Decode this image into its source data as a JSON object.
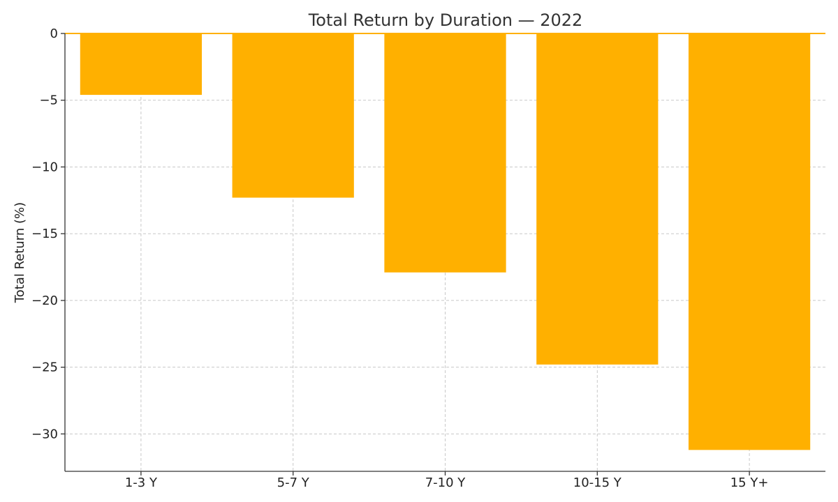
{
  "chart_data": {
    "type": "bar",
    "title": "Total Return by Duration — 2022",
    "xlabel": "",
    "ylabel": "Total Return (%)",
    "categories": [
      "1-3 Y",
      "5-7 Y",
      "7-10 Y",
      "10-15 Y",
      "15 Y+"
    ],
    "values": [
      -4.6,
      -12.3,
      -17.9,
      -24.8,
      -31.2
    ],
    "ylim": [
      -32.8,
      0
    ],
    "yticks": [
      0,
      -5,
      -10,
      -15,
      -20,
      -25,
      -30
    ],
    "ytick_labels": [
      "0",
      "−5",
      "−10",
      "−15",
      "−20",
      "−25",
      "−30"
    ],
    "grid": true,
    "bar_color": "#FFB000",
    "zero_line_color": "#FFB000"
  }
}
